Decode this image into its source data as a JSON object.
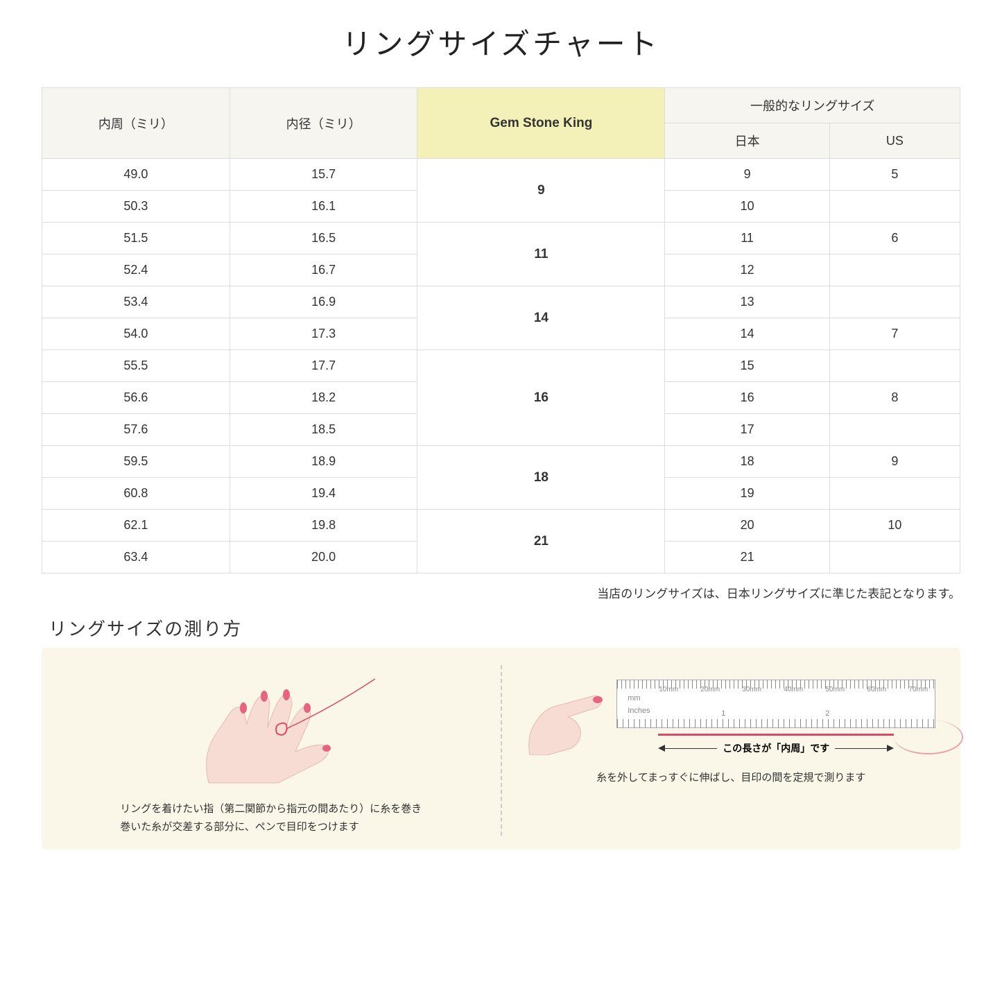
{
  "title": "リングサイズチャート",
  "headers": {
    "circumference": "内周（ミリ）",
    "diameter": "内径（ミリ）",
    "gsk": "Gem Stone King",
    "common": "一般的なリングサイズ",
    "japan": "日本",
    "us": "US"
  },
  "groups": [
    {
      "gsk": "9",
      "rows": [
        {
          "c": "49.0",
          "d": "15.7",
          "jp": "9",
          "us": "5"
        },
        {
          "c": "50.3",
          "d": "16.1",
          "jp": "10",
          "us": ""
        }
      ]
    },
    {
      "gsk": "11",
      "rows": [
        {
          "c": "51.5",
          "d": "16.5",
          "jp": "11",
          "us": "6"
        },
        {
          "c": "52.4",
          "d": "16.7",
          "jp": "12",
          "us": ""
        }
      ]
    },
    {
      "gsk": "14",
      "rows": [
        {
          "c": "53.4",
          "d": "16.9",
          "jp": "13",
          "us": ""
        },
        {
          "c": "54.0",
          "d": "17.3",
          "jp": "14",
          "us": "7"
        }
      ]
    },
    {
      "gsk": "16",
      "rows": [
        {
          "c": "55.5",
          "d": "17.7",
          "jp": "15",
          "us": ""
        },
        {
          "c": "56.6",
          "d": "18.2",
          "jp": "16",
          "us": "8"
        },
        {
          "c": "57.6",
          "d": "18.5",
          "jp": "17",
          "us": ""
        }
      ]
    },
    {
      "gsk": "18",
      "rows": [
        {
          "c": "59.5",
          "d": "18.9",
          "jp": "18",
          "us": "9"
        },
        {
          "c": "60.8",
          "d": "19.4",
          "jp": "19",
          "us": ""
        }
      ]
    },
    {
      "gsk": "21",
      "rows": [
        {
          "c": "62.1",
          "d": "19.8",
          "jp": "20",
          "us": "10"
        },
        {
          "c": "63.4",
          "d": "20.0",
          "jp": "21",
          "us": ""
        }
      ]
    }
  ],
  "note": "当店のリングサイズは、日本リングサイズに準じた表記となります。",
  "howto": {
    "title": "リングサイズの測り方",
    "left_caption": "リングを着けたい指（第二関節から指元の間あたり）に糸を巻き\n巻いた糸が交差する部分に、ペンで目印をつけます",
    "right_caption": "糸を外してまっすぐに伸ばし、目印の間を定規で測ります",
    "arrow_label": "この長さが「内周」です",
    "ruler": {
      "mm_label": "mm",
      "inches_label": "Inches",
      "mm_marks": [
        "10mm",
        "20mm",
        "30mm",
        "40mm",
        "50mm",
        "60mm",
        "70mm"
      ],
      "inch_marks": [
        "1",
        "2"
      ]
    }
  },
  "colors": {
    "header_bg": "#f6f5ef",
    "gsk_bg": "#f4f1b8",
    "howto_bg": "#faf7e8",
    "thread": "#d94a6a",
    "hand_fill": "#f7dcd3",
    "nail": "#e8637f"
  }
}
